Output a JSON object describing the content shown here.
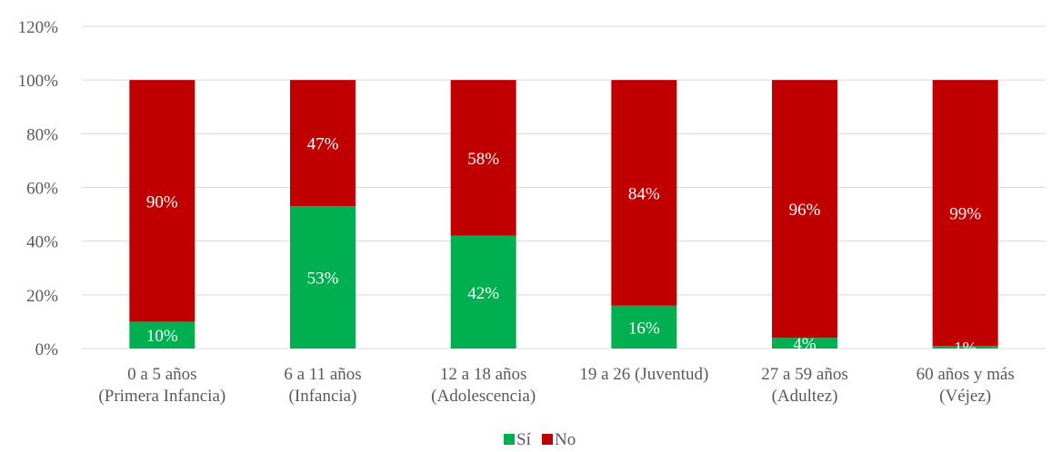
{
  "chart_data": {
    "type": "bar",
    "stacked": true,
    "percent": true,
    "categories": [
      [
        "0 a 5 años",
        "(Primera Infancia)"
      ],
      [
        "6 a 11 años",
        "(Infancia)"
      ],
      [
        "12 a 18 años",
        "(Adolescencia)"
      ],
      [
        "19 a 26 (Juventud)"
      ],
      [
        "27 a 59 años",
        "(Adultez)"
      ],
      [
        "60 años y más",
        "(Véjez)"
      ]
    ],
    "series": [
      {
        "name": "Sí",
        "color": "#00B050",
        "values": [
          10,
          53,
          42,
          16,
          4,
          1
        ],
        "labels": [
          "10%",
          "53%",
          "42%",
          "16%",
          "4%",
          "1%"
        ]
      },
      {
        "name": "No",
        "color": "#C00000",
        "values": [
          90,
          47,
          58,
          84,
          96,
          99
        ],
        "labels": [
          "90%",
          "47%",
          "58%",
          "84%",
          "96%",
          "99%"
        ]
      }
    ],
    "ylim": [
      0,
      120
    ],
    "yticks": [
      "0%",
      "20%",
      "40%",
      "60%",
      "80%",
      "100%",
      "120%"
    ],
    "grid": true,
    "legend_position": "bottom",
    "gridline_color": "#D9D9D9"
  }
}
